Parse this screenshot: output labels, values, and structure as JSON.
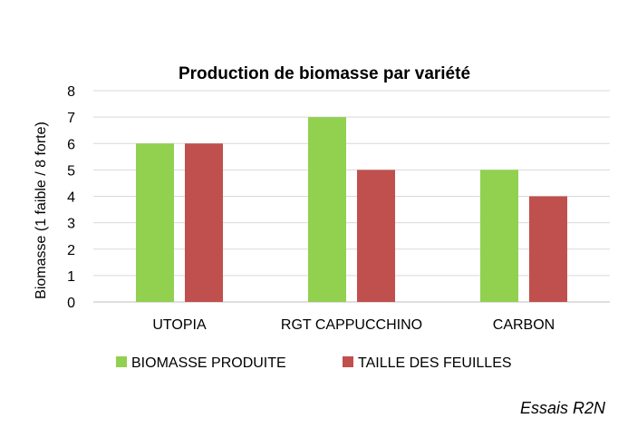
{
  "chart_data": {
    "type": "bar",
    "title": "Production de biomasse par variété",
    "xlabel": "",
    "ylabel": "Biomasse (1 faible / 8 forte)",
    "ylim": [
      0,
      8
    ],
    "yticks": [
      "0",
      "1",
      "2",
      "3",
      "4",
      "5",
      "6",
      "7",
      "8"
    ],
    "grid": true,
    "legend_placement": "bottom",
    "categories": [
      "UTOPIA",
      "RGT CAPPUCCHINO",
      "CARBON"
    ],
    "series": [
      {
        "name": "BIOMASSE PRODUITE",
        "color": "#92D050",
        "values": [
          6,
          7,
          5
        ]
      },
      {
        "name": "TAILLE DES FEUILLES",
        "color": "#C0504D",
        "values": [
          6,
          5,
          4
        ]
      }
    ]
  },
  "footer": {
    "source": "Essais R2N"
  }
}
